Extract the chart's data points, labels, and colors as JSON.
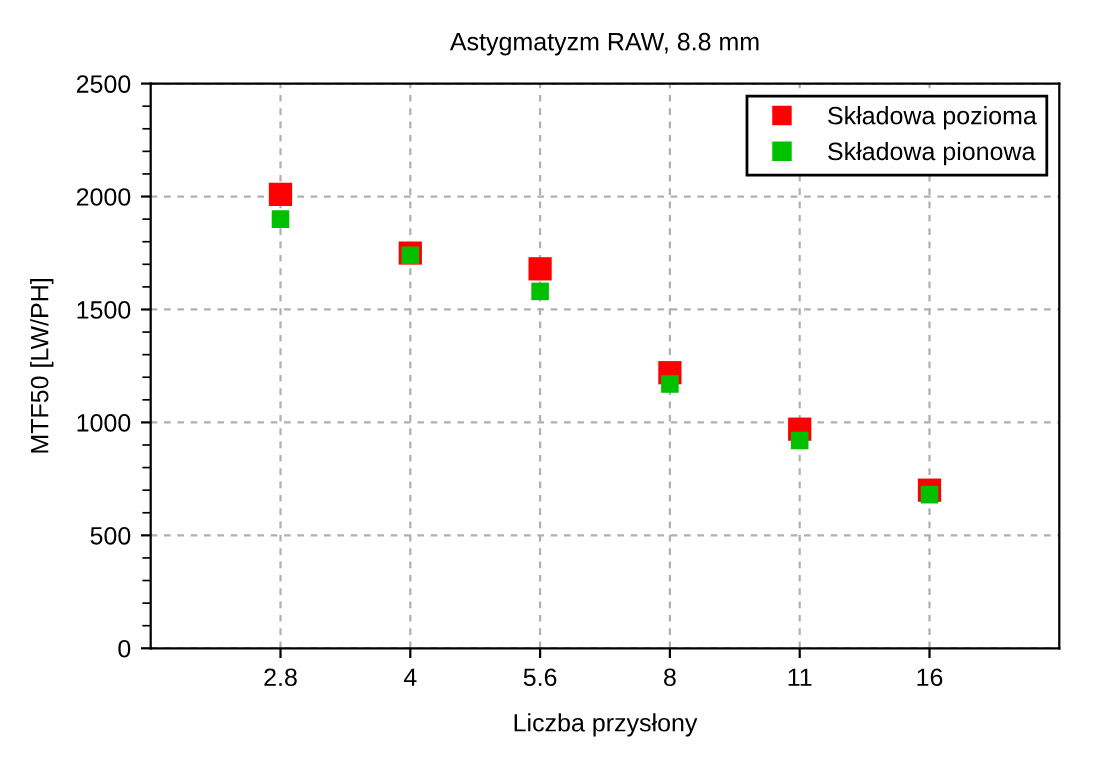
{
  "chart_data": {
    "type": "scatter",
    "title": "Astygmatyzm RAW, 8.8 mm",
    "xlabel": "Liczba przysłony",
    "ylabel": "MTF50 [LW/PH]",
    "categories": [
      "2.8",
      "4",
      "5.6",
      "8",
      "11",
      "16"
    ],
    "series": [
      {
        "name": "Składowa pozioma",
        "color": "#ff0000",
        "values": [
          2010,
          1750,
          1680,
          1220,
          970,
          700
        ]
      },
      {
        "name": "Składowa pionowa",
        "color": "#00c000",
        "values": [
          1900,
          1740,
          1580,
          1170,
          920,
          680
        ]
      }
    ],
    "ylim": [
      0,
      2500
    ],
    "yticks": [
      0,
      500,
      1000,
      1500,
      2000,
      2500
    ],
    "grid": true,
    "legend": "top right",
    "marker": "square"
  }
}
